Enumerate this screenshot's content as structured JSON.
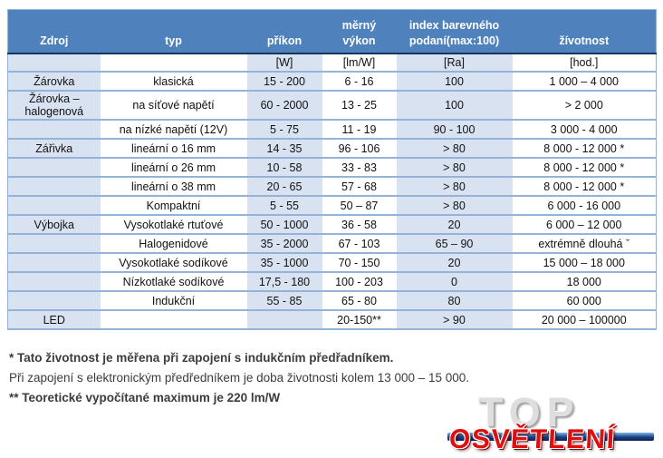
{
  "colors": {
    "header_bg": "#4f81bd",
    "header_text": "#ffffff",
    "band_bg": "#d9e2f0",
    "row_border": "#95b3d7",
    "header_bottom_border": "#17365d",
    "logo_red": "#de0f0f",
    "logo_bar_blue": "#1c3f87",
    "logo_gray": "#dedede"
  },
  "table": {
    "columns": [
      {
        "label": "Zdroj",
        "unit": ""
      },
      {
        "label": "typ",
        "unit": ""
      },
      {
        "label": "příkon",
        "unit": "[W]"
      },
      {
        "label": "měrný výkon",
        "unit": "[lm/W]"
      },
      {
        "label": "index barevného podaní(max:100)",
        "unit": "[Ra]"
      },
      {
        "label": "žívotnost",
        "unit": "[hod.]"
      }
    ],
    "rows": [
      [
        "Žárovka",
        "klasická",
        "15 - 200",
        "6 - 16",
        "100",
        "1 000 – 4 000"
      ],
      [
        "Žárovka – halogenová",
        "na síťové napětí",
        "60 - 2000",
        "13 - 25",
        "100",
        "> 2 000"
      ],
      [
        "",
        "na nízké napětí (12V)",
        "5 - 75",
        "11 - 19",
        "90 - 100",
        "3 000 - 4 000"
      ],
      [
        "Zářivka",
        "lineární o 16 mm",
        "14 - 35",
        "96 - 106",
        "> 80",
        "8 000 - 12 000 *"
      ],
      [
        "",
        "lineární o 26 mm",
        "10 - 58",
        "33 - 83",
        "> 80",
        "8 000 - 12 000 *"
      ],
      [
        "",
        "lineární o 38 mm",
        "20 - 65",
        "57 - 68",
        "> 80",
        "8 000 - 12 000 *"
      ],
      [
        "",
        "Kompaktní",
        "5 - 55",
        "50 – 87",
        "> 80",
        "6 000 - 16 000"
      ],
      [
        "Výbojka",
        "Vysokotlaké rtuťové",
        "50 - 1000",
        "36 - 58",
        "20",
        "6 000 – 12 000"
      ],
      [
        "",
        "Halogenidové",
        "35 - 2000",
        "67 - 103",
        "65 – 90",
        "extrémně dlouhá ˇ"
      ],
      [
        "",
        "Vysokotlaké sodíkové",
        "35 - 1000",
        "70 - 150",
        "20",
        "15 000 – 18 000"
      ],
      [
        "",
        "Nízkotlaké sodíkové",
        "17,5 - 180",
        "100 - 203",
        "0",
        "18 000"
      ],
      [
        "",
        "Indukční",
        "55 - 85",
        "65 - 80",
        "80",
        "60 000"
      ],
      [
        "LED",
        "",
        "",
        "20-150**",
        "> 90",
        "20 000 – 100000"
      ]
    ]
  },
  "footnotes": [
    {
      "text": "* Tato životnost je měřena při zapojení s indukčním předřadníkem.",
      "bold": true
    },
    {
      "text": "Při zapojení s elektronickým předředníkem je doba životnosti kolem 13 000 – 15 000.",
      "bold": false
    },
    {
      "text": "** Teoretické vypočítané maximum je 220 lm/W",
      "bold": true
    }
  ],
  "logo": {
    "top": "TOP",
    "bottom": "OSVĚTLENÍ"
  }
}
